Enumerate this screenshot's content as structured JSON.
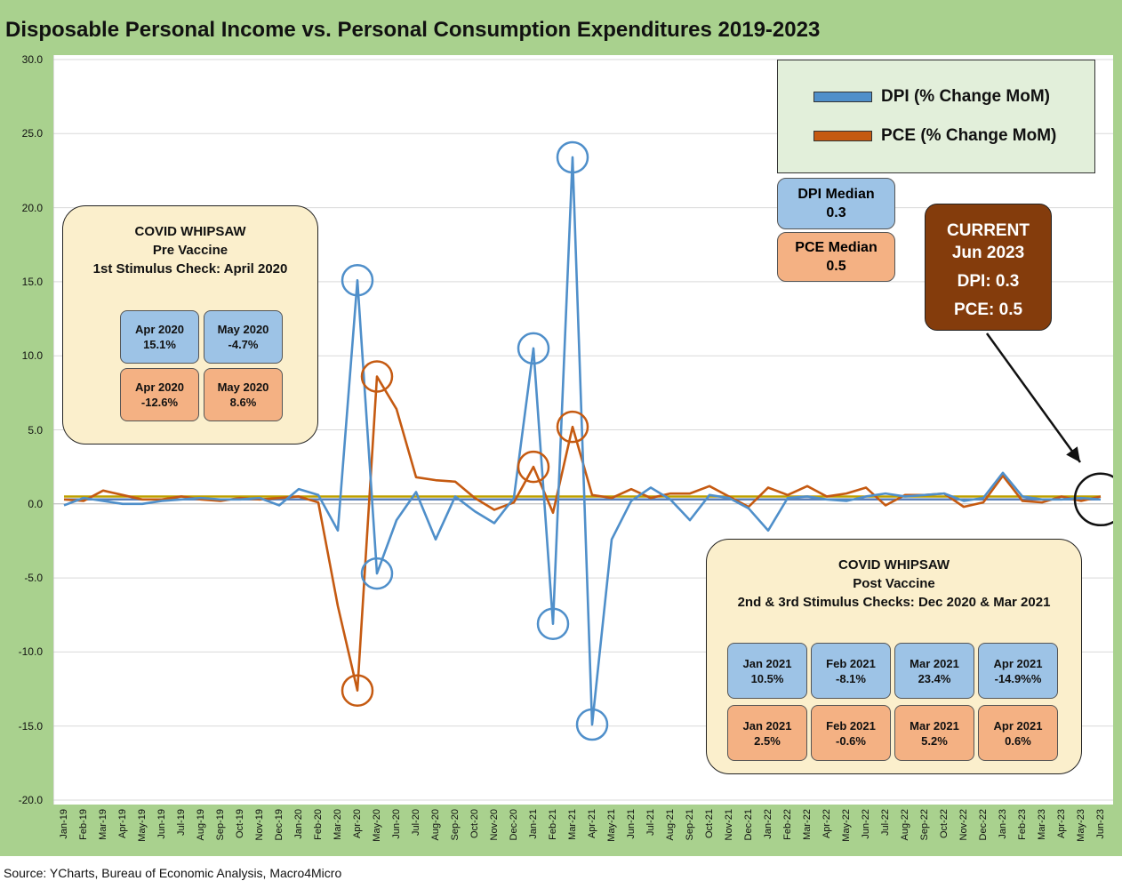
{
  "title": "Disposable Personal Income vs. Personal Consumption Expenditures 2019-2023",
  "source": "Source: YCharts, Bureau of Economic Analysis, Macro4Micro",
  "colors": {
    "dpi": "#4f8fca",
    "pce": "#c55a11",
    "dpi_median": "#5a7fb8",
    "pce_median": "#bfa100",
    "frame": "#a9d18e"
  },
  "legend": {
    "dpi": "DPI (% Change MoM)",
    "pce": "PCE (% Change MoM)"
  },
  "medians": {
    "dpi_label": "DPI Median",
    "dpi_value": "0.3",
    "pce_label": "PCE Median",
    "pce_value": "0.5"
  },
  "current": {
    "title": "CURRENT",
    "period": "Jun 2023",
    "dpi": "DPI: 0.3",
    "pce": "PCE: 0.5"
  },
  "pre_vaccine": {
    "heading": "COVID WHIPSAW",
    "subheading": "Pre Vaccine",
    "note": "1st Stimulus Check: April 2020",
    "dpi_cells": [
      {
        "month": "Apr 2020",
        "value": "15.1%"
      },
      {
        "month": "May 2020",
        "value": "-4.7%"
      }
    ],
    "pce_cells": [
      {
        "month": "Apr 2020",
        "value": "-12.6%"
      },
      {
        "month": "May 2020",
        "value": "8.6%"
      }
    ]
  },
  "post_vaccine": {
    "heading": "COVID WHIPSAW",
    "subheading": "Post Vaccine",
    "note": "2nd & 3rd Stimulus Checks: Dec 2020 & Mar 2021",
    "dpi_cells": [
      {
        "month": "Jan 2021",
        "value": "10.5%"
      },
      {
        "month": "Feb 2021",
        "value": "-8.1%"
      },
      {
        "month": "Mar 2021",
        "value": "23.4%"
      },
      {
        "month": "Apr 2021",
        "value": "-14.9%%"
      }
    ],
    "pce_cells": [
      {
        "month": "Jan 2021",
        "value": "2.5%"
      },
      {
        "month": "Feb 2021",
        "value": "-0.6%"
      },
      {
        "month": "Mar 2021",
        "value": "5.2%"
      },
      {
        "month": "Apr 2021",
        "value": "0.6%"
      }
    ]
  },
  "chart_data": {
    "type": "line",
    "title": "Disposable Personal Income vs. Personal Consumption Expenditures 2019-2023",
    "ylim": [
      -20,
      30
    ],
    "y_ticks": [
      "30.0",
      "25.0",
      "20.0",
      "15.0",
      "10.0",
      "5.0",
      "0.0",
      "-5.0",
      "-10.0",
      "-15.0",
      "-20.0"
    ],
    "grid": "horizontal",
    "legend_position": "top-right",
    "categories": [
      "Jan-19",
      "Feb-19",
      "Mar-19",
      "Apr-19",
      "May-19",
      "Jun-19",
      "Jul-19",
      "Aug-19",
      "Sep-19",
      "Oct-19",
      "Nov-19",
      "Dec-19",
      "Jan-20",
      "Feb-20",
      "Mar-20",
      "Apr-20",
      "May-20",
      "Jun-20",
      "Jul-20",
      "Aug-20",
      "Sep-20",
      "Oct-20",
      "Nov-20",
      "Dec-20",
      "Jan-21",
      "Feb-21",
      "Mar-21",
      "Apr-21",
      "May-21",
      "Jun-21",
      "Jul-21",
      "Aug-21",
      "Sep-21",
      "Oct-21",
      "Nov-21",
      "Dec-21",
      "Jan-22",
      "Feb-22",
      "Mar-22",
      "Apr-22",
      "May-22",
      "Jun-22",
      "Jul-22",
      "Aug-22",
      "Sep-22",
      "Oct-22",
      "Nov-22",
      "Dec-22",
      "Jan-23",
      "Feb-23",
      "Mar-23",
      "Apr-23",
      "May-23",
      "Jun-23"
    ],
    "series": [
      {
        "name": "DPI (% Change MoM)",
        "values": [
          -0.1,
          0.4,
          0.2,
          0.0,
          0.0,
          0.2,
          0.3,
          0.4,
          0.3,
          0.3,
          0.4,
          -0.1,
          1.0,
          0.6,
          -1.8,
          15.1,
          -4.7,
          -1.1,
          0.8,
          -2.4,
          0.5,
          -0.5,
          -1.3,
          0.4,
          10.5,
          -8.1,
          23.4,
          -14.9,
          -2.4,
          0.2,
          1.1,
          0.3,
          -1.1,
          0.6,
          0.4,
          -0.3,
          -1.8,
          0.4,
          0.5,
          0.3,
          0.2,
          0.5,
          0.7,
          0.5,
          0.6,
          0.7,
          0.2,
          0.4,
          2.1,
          0.5,
          0.3,
          0.3,
          0.4,
          0.3
        ]
      },
      {
        "name": "PCE (% Change MoM)",
        "values": [
          0.3,
          0.2,
          0.9,
          0.6,
          0.3,
          0.3,
          0.5,
          0.3,
          0.2,
          0.4,
          0.3,
          0.4,
          0.5,
          0.1,
          -6.9,
          -12.6,
          8.6,
          6.4,
          1.8,
          1.6,
          1.5,
          0.4,
          -0.4,
          0.1,
          2.5,
          -0.6,
          5.2,
          0.6,
          0.4,
          1.0,
          0.4,
          0.7,
          0.7,
          1.2,
          0.5,
          -0.2,
          1.1,
          0.6,
          1.2,
          0.5,
          0.7,
          1.1,
          -0.1,
          0.6,
          0.6,
          0.7,
          -0.2,
          0.1,
          1.9,
          0.2,
          0.1,
          0.5,
          0.2,
          0.5
        ]
      },
      {
        "name": "DPI Median",
        "values": [
          0.3,
          0.3,
          0.3,
          0.3,
          0.3,
          0.3,
          0.3,
          0.3,
          0.3,
          0.3,
          0.3,
          0.3,
          0.3,
          0.3,
          0.3,
          0.3,
          0.3,
          0.3,
          0.3,
          0.3,
          0.3,
          0.3,
          0.3,
          0.3,
          0.3,
          0.3,
          0.3,
          0.3,
          0.3,
          0.3,
          0.3,
          0.3,
          0.3,
          0.3,
          0.3,
          0.3,
          0.3,
          0.3,
          0.3,
          0.3,
          0.3,
          0.3,
          0.3,
          0.3,
          0.3,
          0.3,
          0.3,
          0.3,
          0.3,
          0.3,
          0.3,
          0.3,
          0.3,
          0.3
        ]
      },
      {
        "name": "PCE Median",
        "values": [
          0.5,
          0.5,
          0.5,
          0.5,
          0.5,
          0.5,
          0.5,
          0.5,
          0.5,
          0.5,
          0.5,
          0.5,
          0.5,
          0.5,
          0.5,
          0.5,
          0.5,
          0.5,
          0.5,
          0.5,
          0.5,
          0.5,
          0.5,
          0.5,
          0.5,
          0.5,
          0.5,
          0.5,
          0.5,
          0.5,
          0.5,
          0.5,
          0.5,
          0.5,
          0.5,
          0.5,
          0.5,
          0.5,
          0.5,
          0.5,
          0.5,
          0.5,
          0.5,
          0.5,
          0.5,
          0.5,
          0.5,
          0.5,
          0.5,
          0.5,
          0.5,
          0.5,
          0.5,
          0.5
        ]
      }
    ],
    "highlighted_points": [
      {
        "series": "DPI (% Change MoM)",
        "x": "Apr-20"
      },
      {
        "series": "DPI (% Change MoM)",
        "x": "May-20"
      },
      {
        "series": "DPI (% Change MoM)",
        "x": "Jan-21"
      },
      {
        "series": "DPI (% Change MoM)",
        "x": "Feb-21"
      },
      {
        "series": "DPI (% Change MoM)",
        "x": "Mar-21"
      },
      {
        "series": "DPI (% Change MoM)",
        "x": "Apr-21"
      },
      {
        "series": "PCE (% Change MoM)",
        "x": "Apr-20"
      },
      {
        "series": "PCE (% Change MoM)",
        "x": "May-20"
      },
      {
        "series": "PCE (% Change MoM)",
        "x": "Jan-21"
      },
      {
        "series": "PCE (% Change MoM)",
        "x": "Mar-21"
      },
      {
        "series": "current",
        "x": "Jun-23"
      }
    ]
  }
}
